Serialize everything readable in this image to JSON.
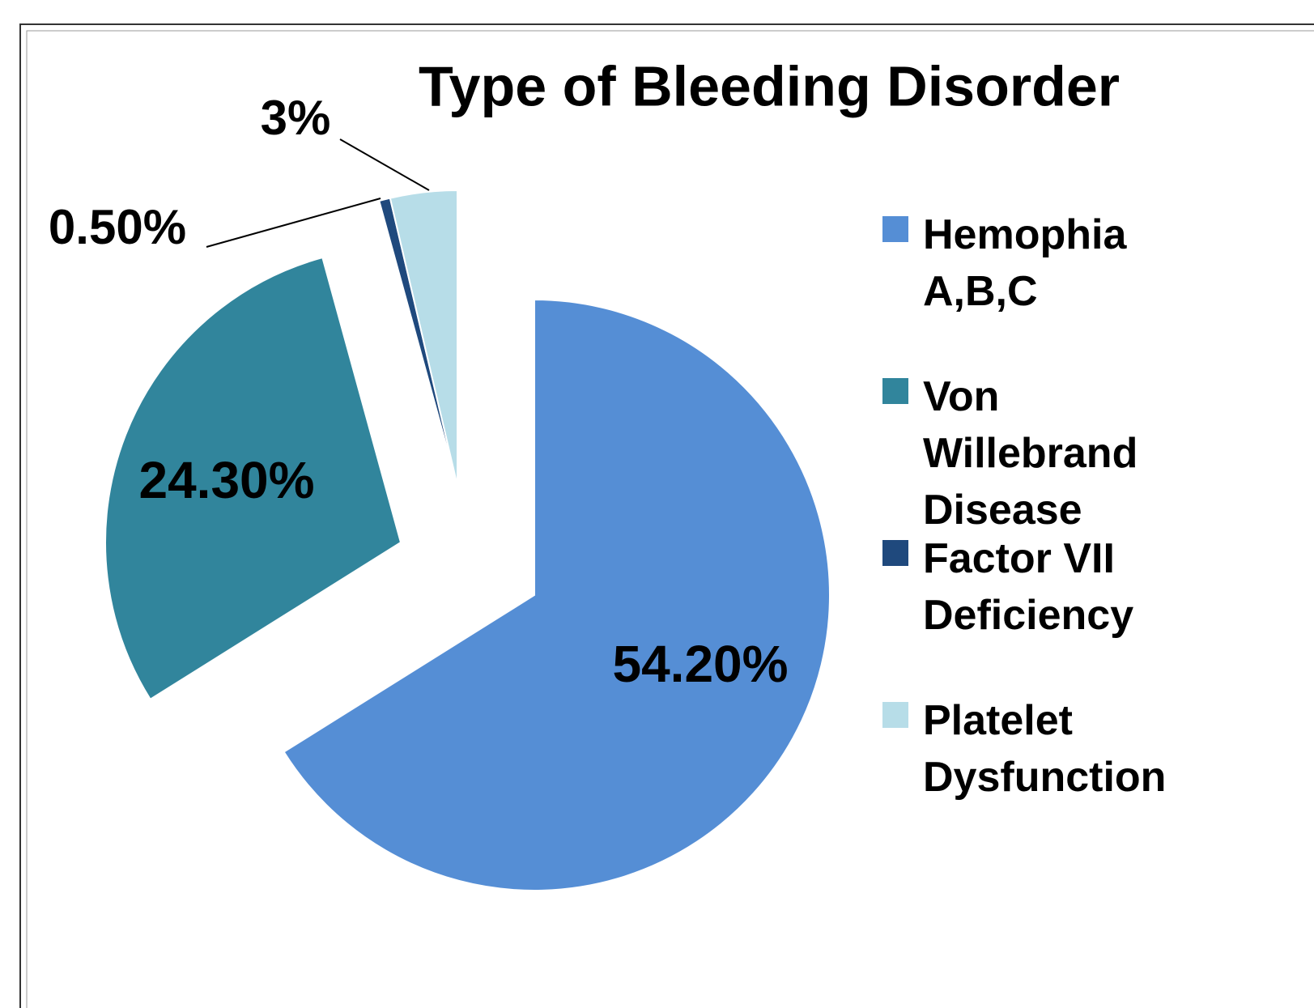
{
  "chart_data": {
    "type": "pie",
    "title": "Type of Bleeding Disorder",
    "categories": [
      "Hemophia A,B,C",
      "Von Willebrand Disease",
      "Factor VII Deficiency",
      "Platelet Dysfunction"
    ],
    "values": [
      54.2,
      24.3,
      0.5,
      3
    ],
    "value_labels": [
      "54.20%",
      "24.30%",
      "0.50%",
      "3%"
    ],
    "colors": [
      "#558ed5",
      "#31859c",
      "#1f497d",
      "#b7dde8"
    ]
  }
}
